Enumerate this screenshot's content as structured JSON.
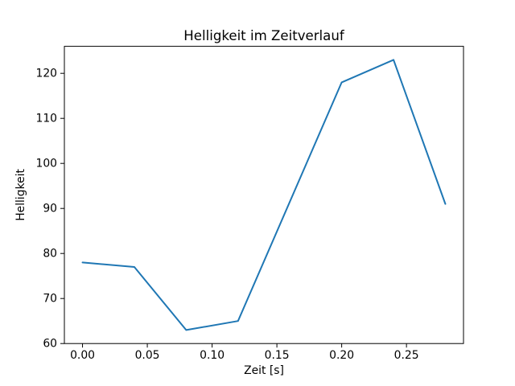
{
  "figure": {
    "background": "#ffffff",
    "spine_color": "#000000",
    "text_color": "#000000"
  },
  "chart_data": {
    "type": "line",
    "title": "Helligkeit im Zeitverlauf",
    "xlabel": "Zeit [s]",
    "ylabel": "Helligkeit",
    "x": [
      0.0,
      0.04,
      0.08,
      0.12,
      0.2,
      0.24,
      0.28
    ],
    "y": [
      78,
      77,
      63,
      65,
      118,
      123,
      91
    ],
    "xlim": [
      -0.014,
      0.294
    ],
    "ylim": [
      60,
      126
    ],
    "xticks": [
      0.0,
      0.05,
      0.1,
      0.15,
      0.2,
      0.25
    ],
    "xtick_labels": [
      "0.00",
      "0.05",
      "0.10",
      "0.15",
      "0.20",
      "0.25"
    ],
    "yticks": [
      60,
      70,
      80,
      90,
      100,
      110,
      120
    ],
    "ytick_labels": [
      "60",
      "70",
      "80",
      "90",
      "100",
      "110",
      "120"
    ],
    "line_color": "#1f77b4",
    "line_width": 2,
    "grid": false,
    "legend": "none",
    "markers": "none"
  }
}
